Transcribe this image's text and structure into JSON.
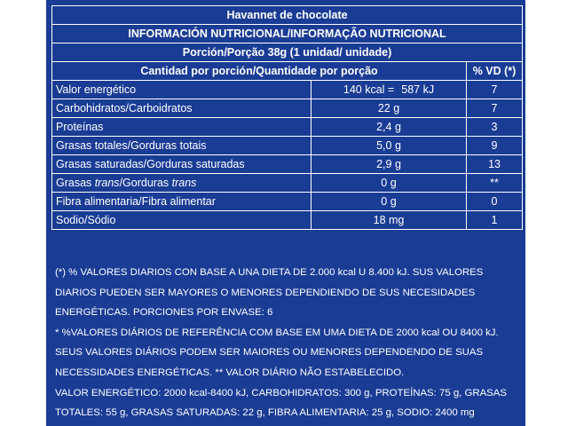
{
  "product_name": "Havannet de chocolate",
  "section_title": "INFORMACIÓN NUTRICIONAL/INFORMAÇÃO NUTRICIONAL",
  "serving": "Porción/Porção 38g (1 unidad/ unidade)",
  "col_amount": "Cantidad por porción/Quantidade por porção",
  "col_dv": "% VD (*)",
  "energy": {
    "label": "Valor energético",
    "kcal": "140 kcal =",
    "kj": "587 kJ",
    "dv": "7"
  },
  "rows": [
    {
      "label": "Carbohidratos/Carboidratos",
      "amount": "22 g",
      "dv": "7"
    },
    {
      "label": "Proteínas",
      "amount": "2,4 g",
      "dv": "3"
    },
    {
      "label": "Grasas totales/Gorduras totais",
      "amount": "5,0 g",
      "dv": "9"
    },
    {
      "label": "Grasas saturadas/Gorduras saturadas",
      "amount": "2,9 g",
      "dv": "13"
    }
  ],
  "trans": {
    "label_a": "Grasas ",
    "label_b": "trans",
    "label_c": "/Gorduras ",
    "label_d": "trans",
    "amount": "0 g",
    "dv": "**"
  },
  "rows2": [
    {
      "label": "Fibra alimentaria/Fibra alimentar",
      "amount": "0 g",
      "dv": "0"
    },
    {
      "label": "Sodio/Sódio",
      "amount": "18 mg",
      "dv": "1"
    }
  ],
  "notes": {
    "es": "(*) % VALORES DIARIOS CON BASE A UNA DIETA DE 2.000 kcal U 8.400 kJ. SUS VALORES DIARIOS PUEDEN SER MAYORES O MENORES DEPENDIENDO DE SUS NECESIDADES ENERGÉTICAS. PORCIONES POR ENVASE: 6",
    "pt": "* %VALORES DIÁRIOS DE REFERÊNCIA COM BASE EM UMA DIETA DE 2000 kcal OU 8400 kJ. SEUS VALORES DIÁRIOS PODEM SER MAIORES OU MENORES DEPENDENDO DE SUAS NECESSIDADES ENERGÉTICAS. ** VALOR DIÁRIO NÃO ESTABELECIDO.",
    "ref": "VALOR ENERGÉTICO: 2000 kcal-8400 kJ, CARBOHIDRATOS: 300 g, PROTEÍNAS: 75 g, GRASAS TOTALES: 55 g, GRASAS SATURADAS: 22 g, FIBRA ALIMENTARIA: 25 g, SODIO: 2400 mg"
  },
  "colors": {
    "background": "#1a3c95",
    "text": "#ffffff"
  }
}
